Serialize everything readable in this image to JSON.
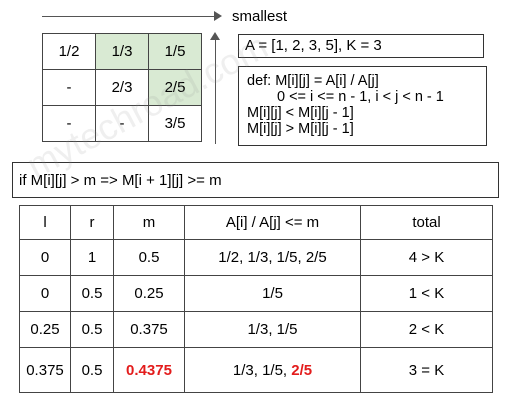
{
  "header": {
    "smallest_label": "smallest"
  },
  "matrix": {
    "rows": [
      [
        {
          "text": "1/2",
          "highlight": false
        },
        {
          "text": "1/3",
          "highlight": true
        },
        {
          "text": "1/5",
          "highlight": true
        }
      ],
      [
        {
          "text": "-",
          "highlight": false
        },
        {
          "text": "2/3",
          "highlight": false
        },
        {
          "text": "2/5",
          "highlight": true
        }
      ],
      [
        {
          "text": "-",
          "highlight": false
        },
        {
          "text": "-",
          "highlight": false
        },
        {
          "text": "3/5",
          "highlight": false
        }
      ]
    ],
    "highlight_color": "#d9ead3"
  },
  "info": {
    "a_line": "A = [1, 2, 3, 5], K = 3",
    "def_lines": [
      "def: M[i][j] = A[i] / A[j]",
      "0 <= i <= n - 1, i < j < n - 1",
      "M[i][j] < M[i][j - 1]",
      "M[i][j] > M[i][j - 1]"
    ],
    "if_line": "if M[i][j] > m => M[i + 1][j] >= m"
  },
  "results": {
    "headers": [
      "l",
      "r",
      "m",
      "A[i] / A[j] <= m",
      "total"
    ],
    "rows": [
      [
        "0",
        "1",
        "0.5",
        "1/2, 1/3, 1/5, 2/5",
        "4 > K"
      ],
      [
        "0",
        "0.5",
        "0.25",
        "1/5",
        "1 < K"
      ],
      [
        "0.25",
        "0.5",
        "0.375",
        "1/3, 1/5",
        "2 < K"
      ],
      [
        "0.375",
        "0.5",
        "0.4375",
        "1/3, 1/5, 2/5",
        "3 = K"
      ]
    ],
    "emphasis_color": "#e31c1c"
  },
  "watermark": "mytechroad.com"
}
